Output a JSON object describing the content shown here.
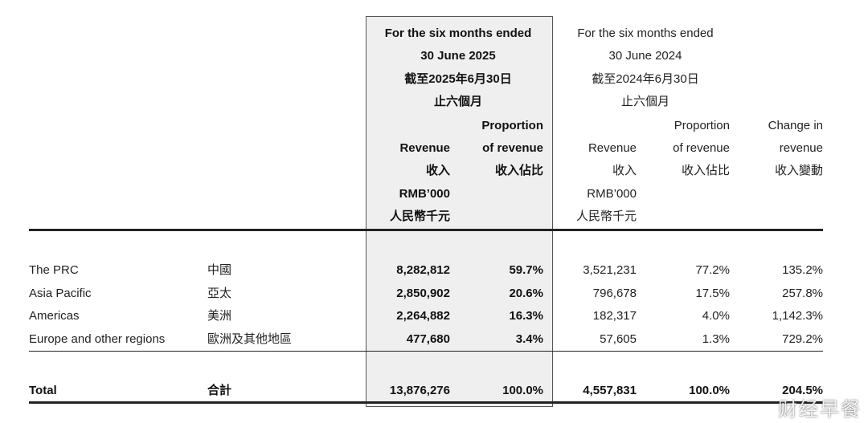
{
  "header": {
    "current_period": [
      "For the six months ended",
      "30 June 2025",
      "截至2025年6月30日",
      "止六個月"
    ],
    "prior_period": [
      "For the six months ended",
      "30 June 2024",
      "截至2024年6月30日",
      "止六個月"
    ]
  },
  "columns": [
    [
      "Revenue",
      "收入",
      "RMB’000",
      "人民幣千元"
    ],
    [
      "Proportion",
      "of revenue",
      "收入佔比"
    ],
    [
      "Revenue",
      "收入",
      "RMB’000",
      "人民幣千元"
    ],
    [
      "Proportion",
      "of revenue",
      "收入佔比"
    ],
    [
      "Change in",
      "revenue",
      "收入變動"
    ]
  ],
  "table": {
    "rows": [
      [
        "The PRC",
        "中國",
        "8,282,812",
        "59.7%",
        "3,521,231",
        "77.2%",
        "135.2%"
      ],
      [
        "Asia Pacific",
        "亞太",
        "2,850,902",
        "20.6%",
        "796,678",
        "17.5%",
        "257.8%"
      ],
      [
        "Americas",
        "美洲",
        "2,264,882",
        "16.3%",
        "182,317",
        "4.0%",
        "1,142.3%"
      ],
      [
        "Europe and other regions",
        "歐洲及其他地區",
        "477,680",
        "3.4%",
        "57,605",
        "1.3%",
        "729.2%"
      ]
    ],
    "total": [
      "Total",
      "合計",
      "13,876,276",
      "100.0%",
      "4,557,831",
      "100.0%",
      "204.5%"
    ]
  },
  "watermark": "财经早餐"
}
